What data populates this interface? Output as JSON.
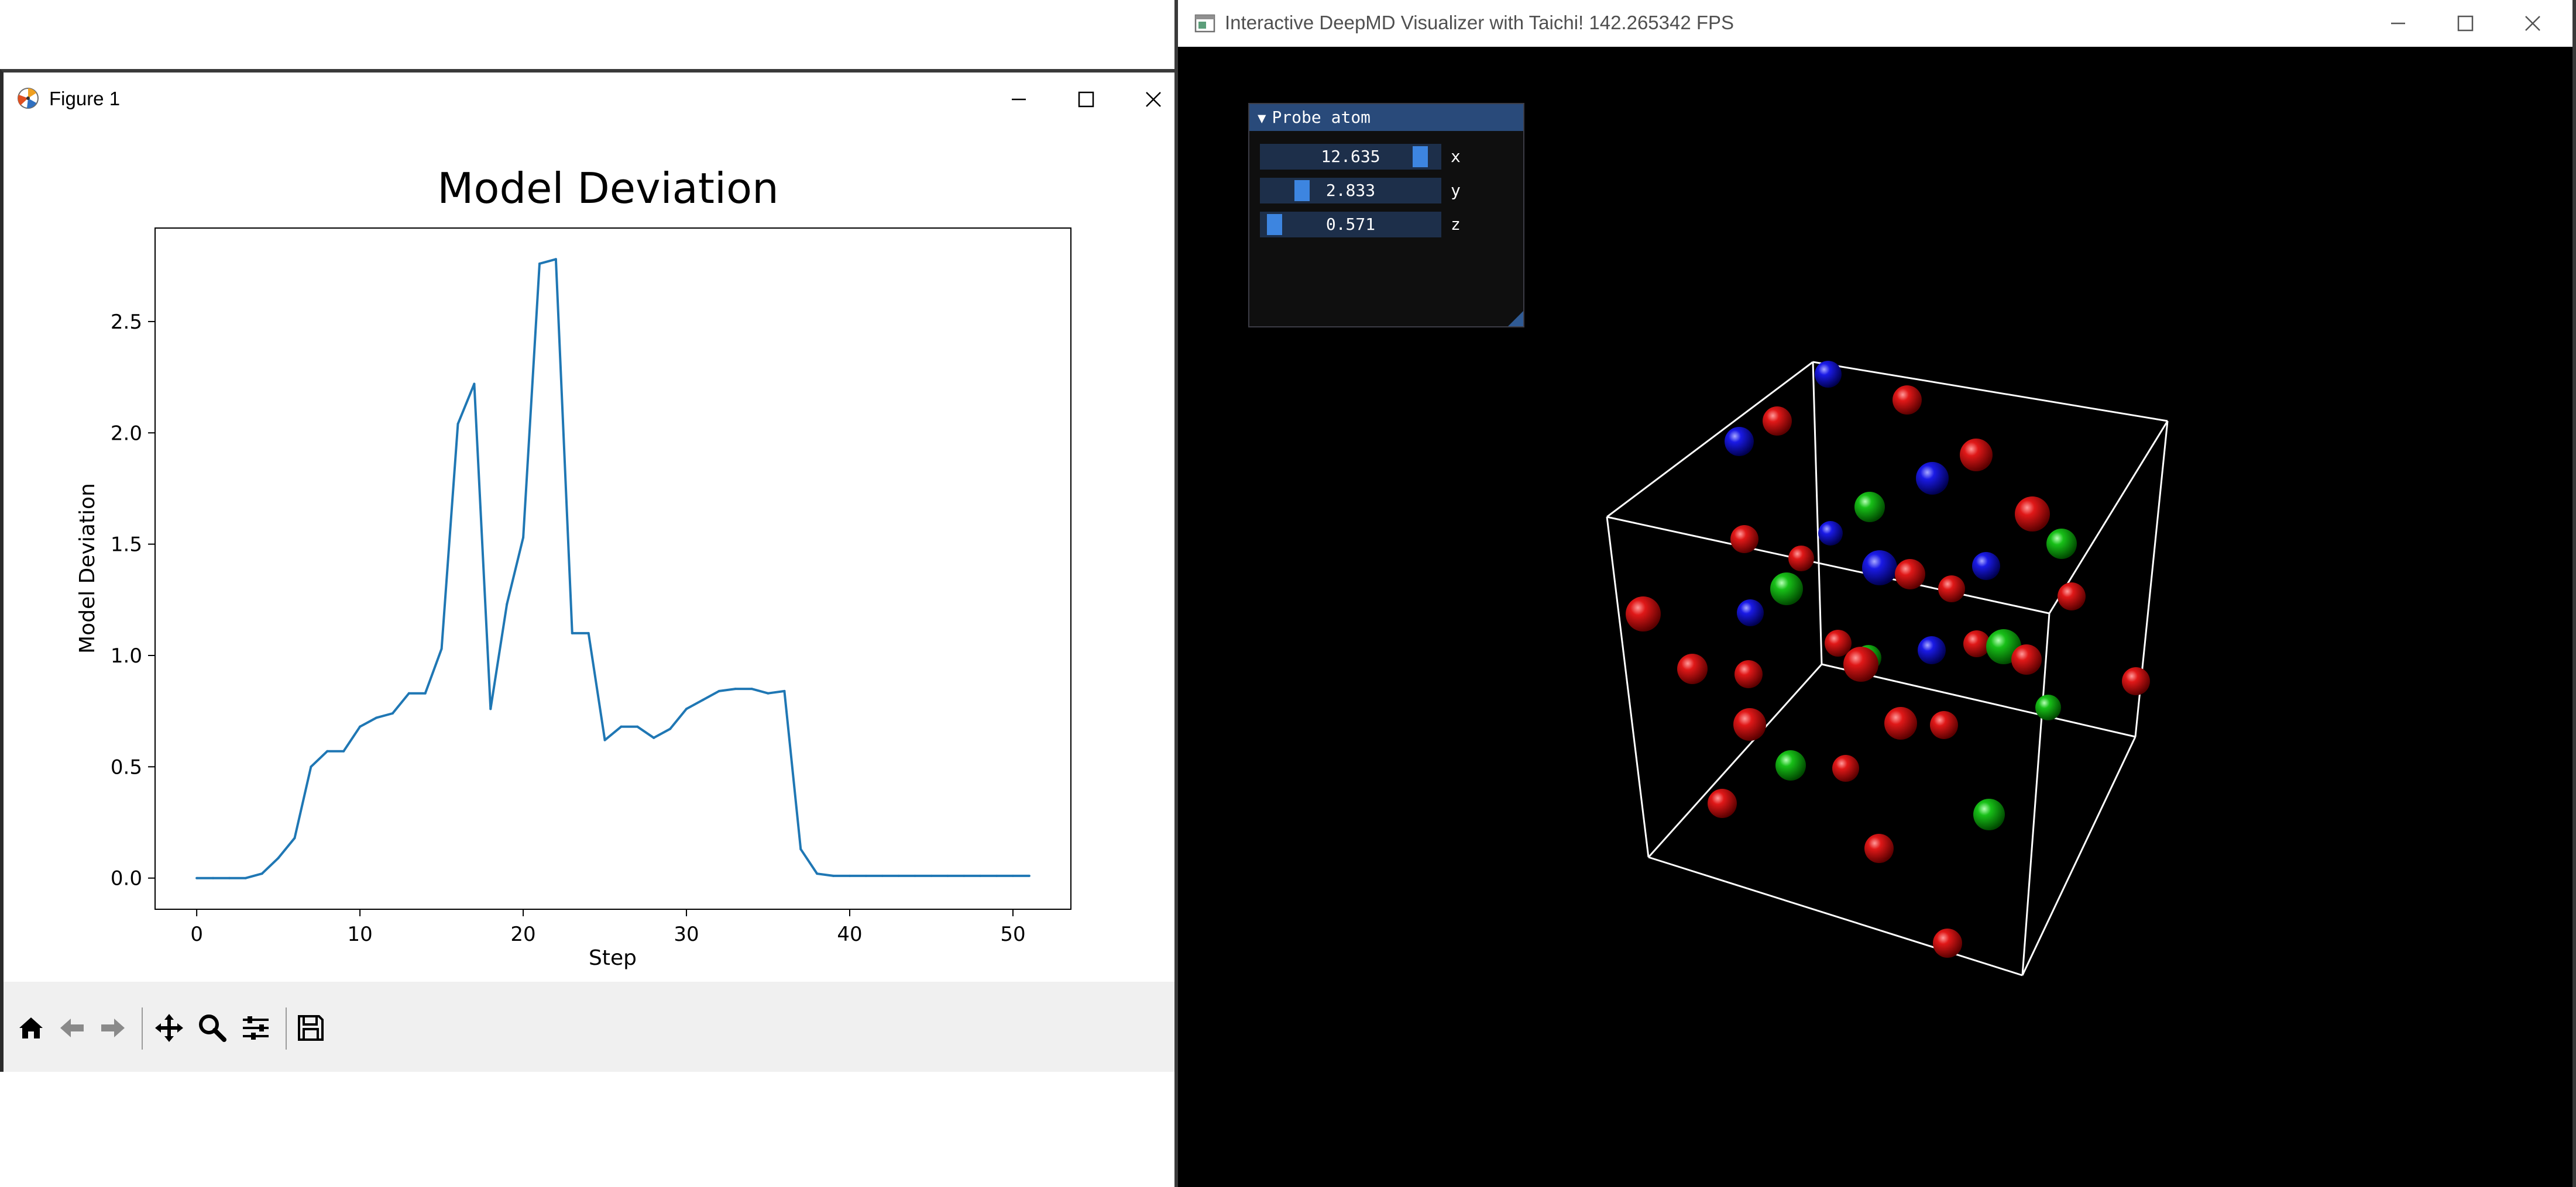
{
  "figure_window": {
    "title": "Figure 1",
    "app_icon": "matplotlib-icon",
    "controls": [
      "minimize-icon",
      "maximize-icon",
      "close-icon"
    ],
    "toolbar": [
      "home-icon",
      "back-icon",
      "forward-icon",
      "pan-icon",
      "zoom-icon",
      "configure-subplots-icon",
      "save-icon"
    ]
  },
  "chart_data": {
    "type": "line",
    "title": "Model Deviation",
    "xlabel": "Step",
    "ylabel": "Model Deviation",
    "xlim": [
      -2.55,
      53.55
    ],
    "ylim": [
      -0.14,
      2.92
    ],
    "xticks": [
      0,
      10,
      20,
      30,
      40,
      50
    ],
    "yticks": [
      0.0,
      0.5,
      1.0,
      1.5,
      2.0,
      2.5
    ],
    "xtick_labels": [
      "0",
      "10",
      "20",
      "30",
      "40",
      "50"
    ],
    "ytick_labels": [
      "0.0",
      "0.5",
      "1.0",
      "1.5",
      "2.0",
      "2.5"
    ],
    "grid": false,
    "line_color": "#1f77b4",
    "series": [
      {
        "x": [
          0,
          1,
          2,
          3,
          4,
          5,
          6,
          7,
          8,
          9,
          10,
          11,
          12,
          13,
          14,
          15,
          16,
          17,
          18,
          19,
          20,
          21,
          22,
          23,
          24,
          25,
          26,
          27,
          28,
          29,
          30,
          31,
          32,
          33,
          34,
          35,
          36,
          37,
          38,
          39,
          40,
          41,
          42,
          43,
          44,
          45,
          46,
          47,
          48,
          49,
          50,
          51
        ],
        "values": [
          0.0,
          0.0,
          0.0,
          0.0,
          0.02,
          0.09,
          0.18,
          0.5,
          0.57,
          0.57,
          0.68,
          0.72,
          0.74,
          0.83,
          0.83,
          1.03,
          2.04,
          2.22,
          0.76,
          1.23,
          1.53,
          2.76,
          2.78,
          1.1,
          1.1,
          0.62,
          0.68,
          0.68,
          0.63,
          0.67,
          0.76,
          0.8,
          0.84,
          0.85,
          0.85,
          0.83,
          0.84,
          0.13,
          0.02,
          0.01,
          0.01,
          0.01,
          0.01,
          0.01,
          0.01,
          0.01,
          0.01,
          0.01,
          0.01,
          0.01,
          0.01,
          0.01
        ]
      }
    ]
  },
  "taichi_window": {
    "title": "Interactive DeepMD Visualizer with Taichi!  142.265342 FPS",
    "app_icon": "window-icon",
    "controls": [
      "minimize-icon",
      "maximize-icon",
      "close-icon"
    ],
    "gui": {
      "header": "Probe atom",
      "collapse_icon": "triangle-down-icon",
      "sliders": [
        {
          "label": "x",
          "value": "12.635",
          "fraction": 0.93
        },
        {
          "label": "y",
          "value": "2.833",
          "fraction": 0.2
        },
        {
          "label": "z",
          "value": "0.571",
          "fraction": 0.03
        }
      ]
    },
    "scene": {
      "box_color": "#ffffff",
      "atom_colors": {
        "red": "#d01010",
        "green": "#10c010",
        "blue": "#1818e0"
      }
    }
  }
}
